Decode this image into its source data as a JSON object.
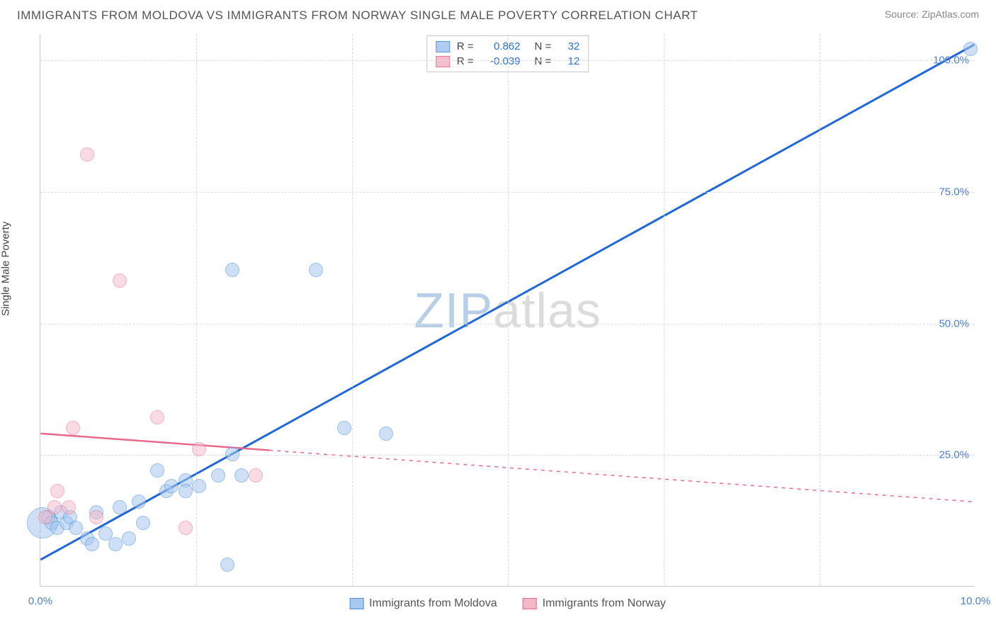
{
  "title": "IMMIGRANTS FROM MOLDOVA VS IMMIGRANTS FROM NORWAY SINGLE MALE POVERTY CORRELATION CHART",
  "source": "Source: ZipAtlas.com",
  "watermark_zip": "ZIP",
  "watermark_atlas": "atlas",
  "y_axis_label": "Single Male Poverty",
  "chart": {
    "type": "scatter",
    "xlim": [
      0,
      10
    ],
    "ylim": [
      0,
      105
    ],
    "xticks": [
      {
        "v": 0,
        "label": "0.0%"
      },
      {
        "v": 10,
        "label": "10.0%"
      }
    ],
    "yticks": [
      {
        "v": 25,
        "label": "25.0%"
      },
      {
        "v": 50,
        "label": "50.0%"
      },
      {
        "v": 75,
        "label": "75.0%"
      },
      {
        "v": 100,
        "label": "100.0%"
      }
    ],
    "xgrid": [
      1.67,
      3.33,
      5,
      6.67,
      8.33
    ],
    "background_color": "#ffffff",
    "grid_color": "#dddddd",
    "axis_color": "#c9c9c9",
    "tick_label_color": "#4a7fd6",
    "marker_radius": 8,
    "marker_stroke_width": 1.5,
    "series": [
      {
        "name": "Immigrants from Moldova",
        "fill": "#a8c8f0",
        "stroke": "#4a8fd6",
        "fill_opacity": 0.55,
        "R": "0.862",
        "N": "32",
        "trend": {
          "x1": 0,
          "y1": 5,
          "x2": 10,
          "y2": 103,
          "color": "#1f68d6",
          "width": 3,
          "solid_until_x": 10
        },
        "points": [
          [
            0.02,
            12,
            22
          ],
          [
            0.08,
            13,
            10
          ],
          [
            0.12,
            12,
            10
          ],
          [
            0.18,
            11,
            10
          ],
          [
            0.22,
            14,
            10
          ],
          [
            0.28,
            12,
            10
          ],
          [
            0.32,
            13,
            10
          ],
          [
            0.38,
            11,
            10
          ],
          [
            0.5,
            9,
            10
          ],
          [
            0.55,
            8,
            10
          ],
          [
            0.6,
            14,
            10
          ],
          [
            0.7,
            10,
            10
          ],
          [
            0.8,
            8,
            10
          ],
          [
            0.85,
            15,
            10
          ],
          [
            0.95,
            9,
            10
          ],
          [
            1.05,
            16,
            10
          ],
          [
            1.1,
            12,
            10
          ],
          [
            1.25,
            22,
            10
          ],
          [
            1.35,
            18,
            10
          ],
          [
            1.4,
            19,
            10
          ],
          [
            1.55,
            20,
            10
          ],
          [
            1.55,
            18,
            10
          ],
          [
            1.7,
            19,
            10
          ],
          [
            1.9,
            21,
            10
          ],
          [
            2.0,
            4,
            10
          ],
          [
            2.05,
            25,
            10
          ],
          [
            2.05,
            60,
            10
          ],
          [
            2.15,
            21,
            10
          ],
          [
            2.95,
            60,
            10
          ],
          [
            3.25,
            30,
            10
          ],
          [
            3.7,
            29,
            10
          ],
          [
            9.95,
            102,
            10
          ]
        ]
      },
      {
        "name": "Immigrants from Norway",
        "fill": "#f5b8c8",
        "stroke": "#e86a8a",
        "fill_opacity": 0.5,
        "R": "-0.039",
        "N": "12",
        "trend": {
          "x1": 0,
          "y1": 29,
          "x2": 10,
          "y2": 16,
          "color": "#e86a8a",
          "width": 2.5,
          "solid_until_x": 2.45
        },
        "points": [
          [
            0.05,
            13,
            10
          ],
          [
            0.15,
            15,
            10
          ],
          [
            0.18,
            18,
            10
          ],
          [
            0.3,
            15,
            10
          ],
          [
            0.35,
            30,
            10
          ],
          [
            0.5,
            82,
            10
          ],
          [
            0.6,
            13,
            10
          ],
          [
            0.85,
            58,
            10
          ],
          [
            1.25,
            32,
            10
          ],
          [
            1.55,
            11,
            10
          ],
          [
            1.7,
            26,
            10
          ],
          [
            2.3,
            21,
            10
          ]
        ]
      }
    ]
  },
  "legend_top": {
    "R_label": "R =",
    "N_label": "N ="
  },
  "legend_bottom": [
    {
      "label": "Immigrants from Moldova",
      "fill": "#a8c8f0",
      "stroke": "#4a8fd6"
    },
    {
      "label": "Immigrants from Norway",
      "fill": "#f5b8c8",
      "stroke": "#e86a8a"
    }
  ]
}
